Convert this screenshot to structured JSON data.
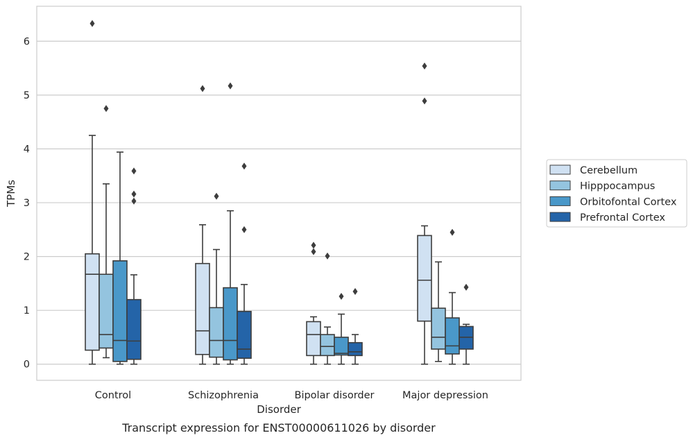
{
  "chart_data": {
    "type": "boxplot",
    "title": "",
    "caption": "Transcript expression for ENST00000611026 by disorder",
    "xlabel": "Disorder",
    "ylabel": "TPMs",
    "ylim": [
      -0.3,
      6.65
    ],
    "yticks": [
      0,
      1,
      2,
      3,
      4,
      5,
      6
    ],
    "grid": "horizontal",
    "legend_position": "right",
    "categories": [
      "Control",
      "Schizophrenia",
      "Bipolar disorder",
      "Major depression"
    ],
    "series": [
      {
        "name": "Cerebellum",
        "color": "#d0e1f2",
        "boxes": [
          {
            "whisker_low": 0.0,
            "q1": 0.26,
            "median": 1.67,
            "q3": 2.05,
            "whisker_high": 4.25,
            "outliers": [
              6.33
            ]
          },
          {
            "whisker_low": 0.0,
            "q1": 0.18,
            "median": 0.62,
            "q3": 1.87,
            "whisker_high": 2.59,
            "outliers": [
              5.12
            ]
          },
          {
            "whisker_low": 0.0,
            "q1": 0.16,
            "median": 0.55,
            "q3": 0.79,
            "whisker_high": 0.88,
            "outliers": [
              2.21,
              2.09
            ]
          },
          {
            "whisker_low": 0.0,
            "q1": 0.8,
            "median": 1.56,
            "q3": 2.39,
            "whisker_high": 2.57,
            "outliers": [
              5.54,
              4.89
            ]
          }
        ]
      },
      {
        "name": "Hipppocampus",
        "color": "#94c4df",
        "boxes": [
          {
            "whisker_low": 0.12,
            "q1": 0.3,
            "median": 0.55,
            "q3": 1.67,
            "whisker_high": 3.35,
            "outliers": [
              4.75
            ]
          },
          {
            "whisker_low": 0.0,
            "q1": 0.13,
            "median": 0.44,
            "q3": 1.05,
            "whisker_high": 2.13,
            "outliers": [
              3.12
            ]
          },
          {
            "whisker_low": 0.0,
            "q1": 0.16,
            "median": 0.33,
            "q3": 0.55,
            "whisker_high": 0.69,
            "outliers": [
              2.01
            ]
          },
          {
            "whisker_low": 0.05,
            "q1": 0.28,
            "median": 0.5,
            "q3": 1.04,
            "whisker_high": 1.9,
            "outliers": []
          }
        ]
      },
      {
        "name": "Orbitofontal Cortex",
        "color": "#4a98c9",
        "boxes": [
          {
            "whisker_low": 0.0,
            "q1": 0.05,
            "median": 0.44,
            "q3": 1.92,
            "whisker_high": 3.94,
            "outliers": []
          },
          {
            "whisker_low": 0.0,
            "q1": 0.08,
            "median": 0.44,
            "q3": 1.42,
            "whisker_high": 2.85,
            "outliers": [
              5.17
            ]
          },
          {
            "whisker_low": 0.0,
            "q1": 0.17,
            "median": 0.2,
            "q3": 0.5,
            "whisker_high": 0.93,
            "outliers": [
              1.26
            ]
          },
          {
            "whisker_low": 0.0,
            "q1": 0.19,
            "median": 0.34,
            "q3": 0.86,
            "whisker_high": 1.33,
            "outliers": [
              2.45
            ]
          }
        ]
      },
      {
        "name": "Prefrontal Cortex",
        "color": "#2464a8",
        "boxes": [
          {
            "whisker_low": 0.0,
            "q1": 0.09,
            "median": 0.43,
            "q3": 1.2,
            "whisker_high": 1.66,
            "outliers": [
              3.59,
              3.16,
              3.03
            ]
          },
          {
            "whisker_low": 0.0,
            "q1": 0.11,
            "median": 0.28,
            "q3": 0.98,
            "whisker_high": 1.48,
            "outliers": [
              3.68,
              2.5
            ]
          },
          {
            "whisker_low": 0.0,
            "q1": 0.16,
            "median": 0.23,
            "q3": 0.4,
            "whisker_high": 0.55,
            "outliers": [
              1.35
            ]
          },
          {
            "whisker_low": 0.0,
            "q1": 0.28,
            "median": 0.5,
            "q3": 0.7,
            "whisker_high": 0.74,
            "outliers": [
              1.43
            ]
          }
        ]
      }
    ]
  }
}
